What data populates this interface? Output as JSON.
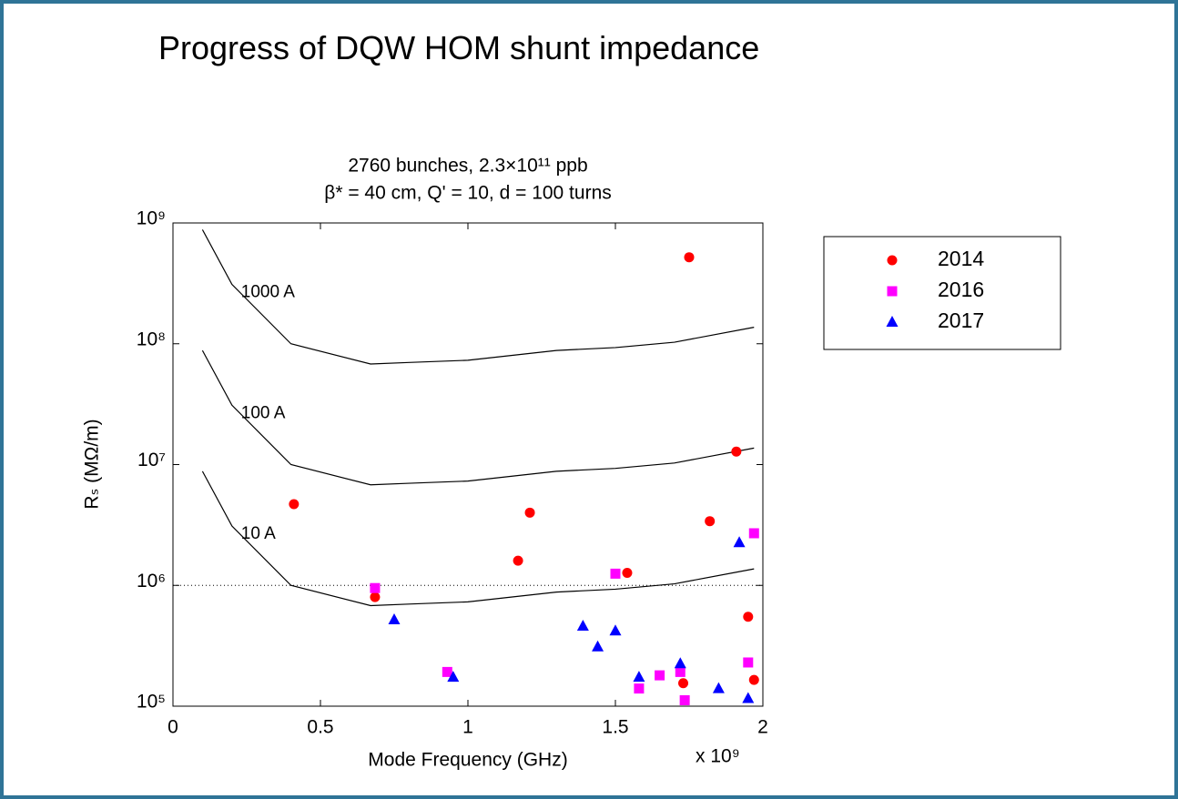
{
  "heading": "Progress of DQW HOM shunt impedance",
  "chart_data": {
    "type": "scatter",
    "title": [
      "2760 bunches, 2.3×10¹¹ ppb",
      "β* = 40 cm, Q' = 10, d = 100 turns"
    ],
    "x_label": "Mode Frequency (GHz)",
    "x_multiplier": "x 10⁹",
    "y_label": "Rₛ (MΩ/m)",
    "xlim": [
      0,
      2
    ],
    "xticks": [
      0,
      0.5,
      1,
      1.5,
      2
    ],
    "ylim": [
      100000,
      1000000000
    ],
    "log_y": true,
    "yticks": [
      {
        "value": 100000,
        "label": "10⁵"
      },
      {
        "value": 1000000,
        "label": "10⁶"
      },
      {
        "value": 10000000,
        "label": "10⁷"
      },
      {
        "value": 100000000,
        "label": "10⁸"
      },
      {
        "value": 1000000000,
        "label": "10⁹"
      }
    ],
    "legend": "outside-right",
    "hline": {
      "value": 1000000,
      "style": "dotted"
    },
    "curves": [
      {
        "label": "1000 A",
        "color": "#000000",
        "x": [
          0.1,
          0.2,
          0.4,
          0.67,
          0.8,
          1.0,
          1.3,
          1.5,
          1.7,
          1.97
        ],
        "values": [
          880000000,
          310000000,
          100000000,
          68000000,
          70000000,
          73000000,
          88000000,
          93000000,
          103000000,
          137000000
        ]
      },
      {
        "label": "100 A",
        "color": "#000000",
        "x": [
          0.1,
          0.2,
          0.4,
          0.67,
          0.8,
          1.0,
          1.3,
          1.5,
          1.7,
          1.97
        ],
        "values": [
          88000000,
          31000000,
          10000000,
          6800000,
          7000000,
          7300000,
          8800000,
          9300000,
          10300000,
          13700000
        ]
      },
      {
        "label": "10 A",
        "color": "#000000",
        "x": [
          0.1,
          0.2,
          0.4,
          0.67,
          0.8,
          1.0,
          1.3,
          1.5,
          1.7,
          1.97
        ],
        "values": [
          8800000,
          3100000,
          1000000,
          680000,
          700000,
          730000,
          880000,
          930000,
          1030000,
          1370000
        ]
      }
    ],
    "series": [
      {
        "name": "2014",
        "color": "#ff0000",
        "marker": "circle",
        "x": [
          0.41,
          0.685,
          1.17,
          1.21,
          1.54,
          1.75,
          1.73,
          1.82,
          1.91,
          1.95,
          1.97
        ],
        "values": [
          4700000,
          800000,
          1600000,
          4000000,
          1270000,
          520000000,
          155000,
          3400000,
          12800000,
          550000,
          165000
        ]
      },
      {
        "name": "2016",
        "color": "#ff00ff",
        "marker": "square",
        "x": [
          0.685,
          0.93,
          1.5,
          1.58,
          1.65,
          1.72,
          1.735,
          1.95,
          1.97
        ],
        "values": [
          950000,
          192000,
          1250000,
          140000,
          180000,
          192000,
          112000,
          230000,
          2700000
        ]
      },
      {
        "name": "2017",
        "color": "#0000ff",
        "marker": "triangle",
        "x": [
          0.75,
          0.95,
          1.39,
          1.44,
          1.5,
          1.58,
          1.72,
          1.85,
          1.92,
          1.95
        ],
        "values": [
          520000,
          174000,
          460000,
          310000,
          420000,
          174000,
          225000,
          140000,
          2260000,
          116000
        ]
      }
    ]
  }
}
